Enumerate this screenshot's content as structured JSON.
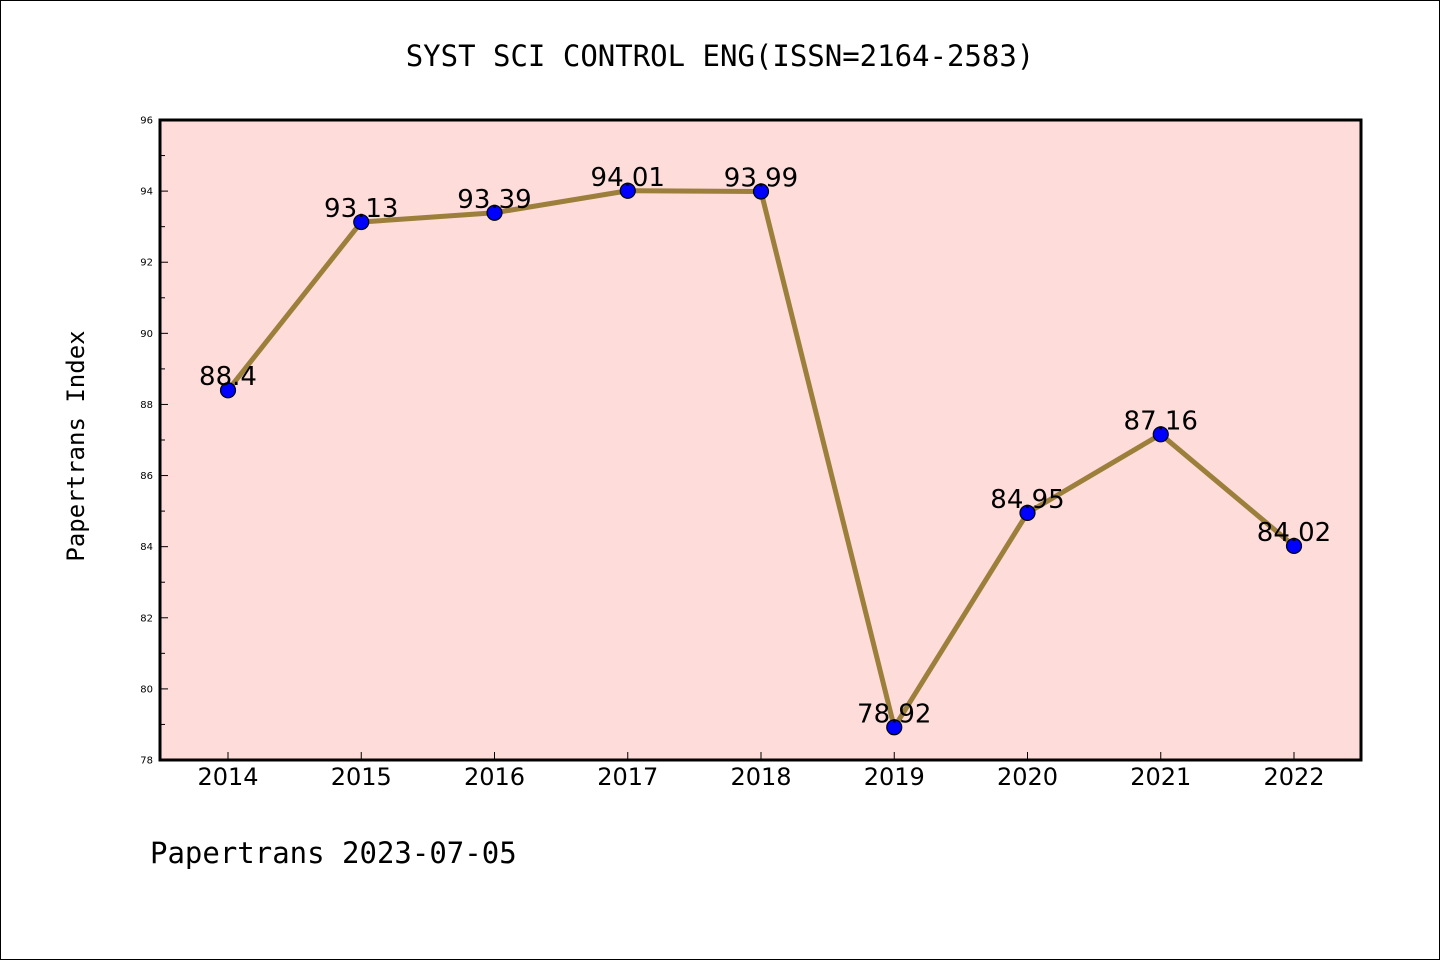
{
  "chart_data": {
    "type": "line",
    "title": "SYST SCI CONTROL ENG(ISSN=2164-2583)",
    "xlabel": "",
    "ylabel": "Papertrans Index",
    "categories": [
      "2014",
      "2015",
      "2016",
      "2017",
      "2018",
      "2019",
      "2020",
      "2021",
      "2022"
    ],
    "series": [
      {
        "values": [
          88.4,
          93.13,
          93.39,
          94.01,
          93.99,
          78.92,
          84.95,
          87.16,
          84.02
        ],
        "labels": [
          "88.4",
          "93.13",
          "93.39",
          "94.01",
          "93.99",
          "78.92",
          "84.95",
          "87.16",
          "84.02"
        ]
      }
    ],
    "ylim": [
      78,
      96
    ],
    "yticks": [
      "78",
      "80",
      "82",
      "84",
      "86",
      "88",
      "90",
      "92",
      "94",
      "96"
    ],
    "grid": false,
    "legend": "none",
    "colors": {
      "plot_background": "#fddcd9",
      "line": "#9b7f3a",
      "marker": "#0000ff",
      "marker_edge": "#000000"
    }
  },
  "footer": "Papertrans 2023-07-05"
}
